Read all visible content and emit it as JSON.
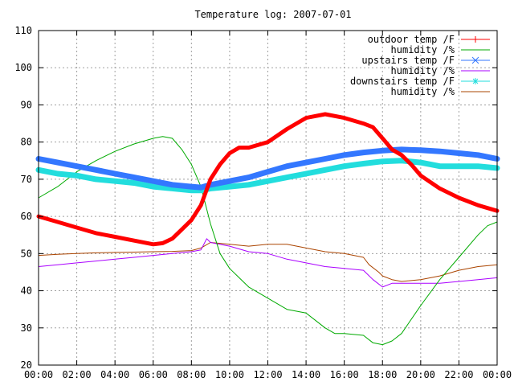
{
  "chart_data": {
    "type": "line",
    "title": "Temperature log: 2007-07-01",
    "xlabel": "",
    "ylabel": "",
    "x_tick_labels": [
      "00:00",
      "02:00",
      "04:00",
      "06:00",
      "08:00",
      "10:00",
      "12:00",
      "14:00",
      "16:00",
      "18:00",
      "20:00",
      "22:00",
      "00:00"
    ],
    "xlim": [
      0,
      24
    ],
    "ylim": [
      20,
      110
    ],
    "y_ticks": [
      20,
      30,
      40,
      50,
      60,
      70,
      80,
      90,
      100,
      110
    ],
    "grid": true,
    "legend_position": "top-right",
    "series": [
      {
        "name": "outdoor temp /F",
        "color": "#ff0000",
        "marker": "plus",
        "x": [
          0,
          1,
          2,
          3,
          4,
          5,
          6,
          6.5,
          7,
          7.5,
          8,
          8.5,
          9,
          9.5,
          10,
          10.5,
          11,
          12,
          13,
          14,
          15,
          16,
          17,
          17.5,
          18,
          18.5,
          19,
          19.5,
          20,
          21,
          22,
          23,
          24
        ],
        "y": [
          60,
          58.5,
          57,
          55.5,
          54.5,
          53.5,
          52.5,
          52.8,
          54,
          56.5,
          59,
          63,
          70,
          74,
          77,
          78.5,
          78.5,
          80,
          83.5,
          86.5,
          87.5,
          86.5,
          85,
          84,
          81,
          78,
          76.5,
          74,
          71,
          67.5,
          65,
          63,
          61.5
        ]
      },
      {
        "name": "humidity /%",
        "color": "#00aa00",
        "marker": "none",
        "x": [
          0,
          1,
          2,
          3,
          4,
          5,
          6,
          6.5,
          7,
          7.5,
          8,
          8.5,
          9,
          9.5,
          10,
          10.5,
          11,
          12,
          13,
          14,
          15,
          15.5,
          16,
          17,
          17.5,
          18,
          18.5,
          19,
          20,
          21,
          22,
          23,
          23.5,
          24
        ],
        "y": [
          65,
          68,
          72,
          75,
          77.5,
          79.5,
          81,
          81.5,
          81,
          78,
          74,
          68,
          58,
          50,
          46,
          43.5,
          41,
          38,
          35,
          34,
          30,
          28.5,
          28.5,
          28,
          26,
          25.5,
          26.5,
          28.5,
          36,
          43,
          49,
          55,
          57.5,
          58.5
        ]
      },
      {
        "name": "upstairs temp /F",
        "color": "#3377ff",
        "marker": "cross",
        "x": [
          0,
          1,
          2,
          3,
          4,
          5,
          6,
          7,
          8,
          8.5,
          9,
          10,
          11,
          12,
          13,
          14,
          15,
          16,
          17,
          18,
          19,
          20,
          21,
          22,
          23,
          24
        ],
        "y": [
          75.5,
          74.5,
          73.5,
          72.5,
          71.5,
          70.5,
          69.5,
          68.5,
          68,
          67.8,
          68.5,
          69.5,
          70.5,
          72,
          73.5,
          74.5,
          75.5,
          76.5,
          77.2,
          77.7,
          78,
          77.8,
          77.5,
          77,
          76.5,
          75.5
        ]
      },
      {
        "name": "humidity /%",
        "color": "#aa00ff",
        "marker": "none",
        "x": [
          0,
          1,
          2,
          3,
          4,
          5,
          6,
          7,
          8,
          8.5,
          8.8,
          9,
          10,
          11,
          12,
          13,
          14,
          15,
          16,
          17,
          17.5,
          18,
          18.5,
          19,
          20,
          21,
          22,
          23,
          24
        ],
        "y": [
          46.5,
          47,
          47.5,
          48,
          48.5,
          49,
          49.5,
          50,
          50.5,
          51,
          54,
          53,
          52,
          50.5,
          50,
          48.5,
          47.5,
          46.5,
          46,
          45.5,
          43,
          41,
          42,
          42,
          42,
          42,
          42.5,
          43,
          43.5
        ]
      },
      {
        "name": "downstairs temp /F",
        "color": "#22dddd",
        "marker": "star",
        "x": [
          0,
          1,
          2,
          3,
          4,
          5,
          6,
          7,
          8,
          8.5,
          9,
          10,
          11,
          12,
          13,
          14,
          15,
          16,
          17,
          18,
          19,
          20,
          21,
          22,
          23,
          24
        ],
        "y": [
          72.5,
          71.5,
          71,
          70,
          69.5,
          69,
          68,
          67.5,
          67,
          67,
          67.5,
          68,
          68.5,
          69.5,
          70.5,
          71.5,
          72.5,
          73.5,
          74.2,
          74.8,
          75,
          74.5,
          73.5,
          73.5,
          73.5,
          73
        ]
      },
      {
        "name": "humidity /%",
        "color": "#aa4400",
        "marker": "none",
        "x": [
          0,
          1,
          2,
          3,
          4,
          5,
          6,
          7,
          8,
          8.5,
          9,
          10,
          11,
          12,
          13,
          14,
          15,
          16,
          17,
          17.3,
          17.8,
          18,
          18.5,
          19,
          20,
          21,
          22,
          23,
          24
        ],
        "y": [
          49.5,
          49.8,
          50,
          50.2,
          50.3,
          50.4,
          50.5,
          50.6,
          50.8,
          51.5,
          53,
          52.5,
          52,
          52.5,
          52.5,
          51.5,
          50.5,
          50,
          49,
          47,
          45,
          44,
          43,
          42.5,
          43,
          44,
          45.5,
          46.5,
          47
        ]
      }
    ]
  }
}
